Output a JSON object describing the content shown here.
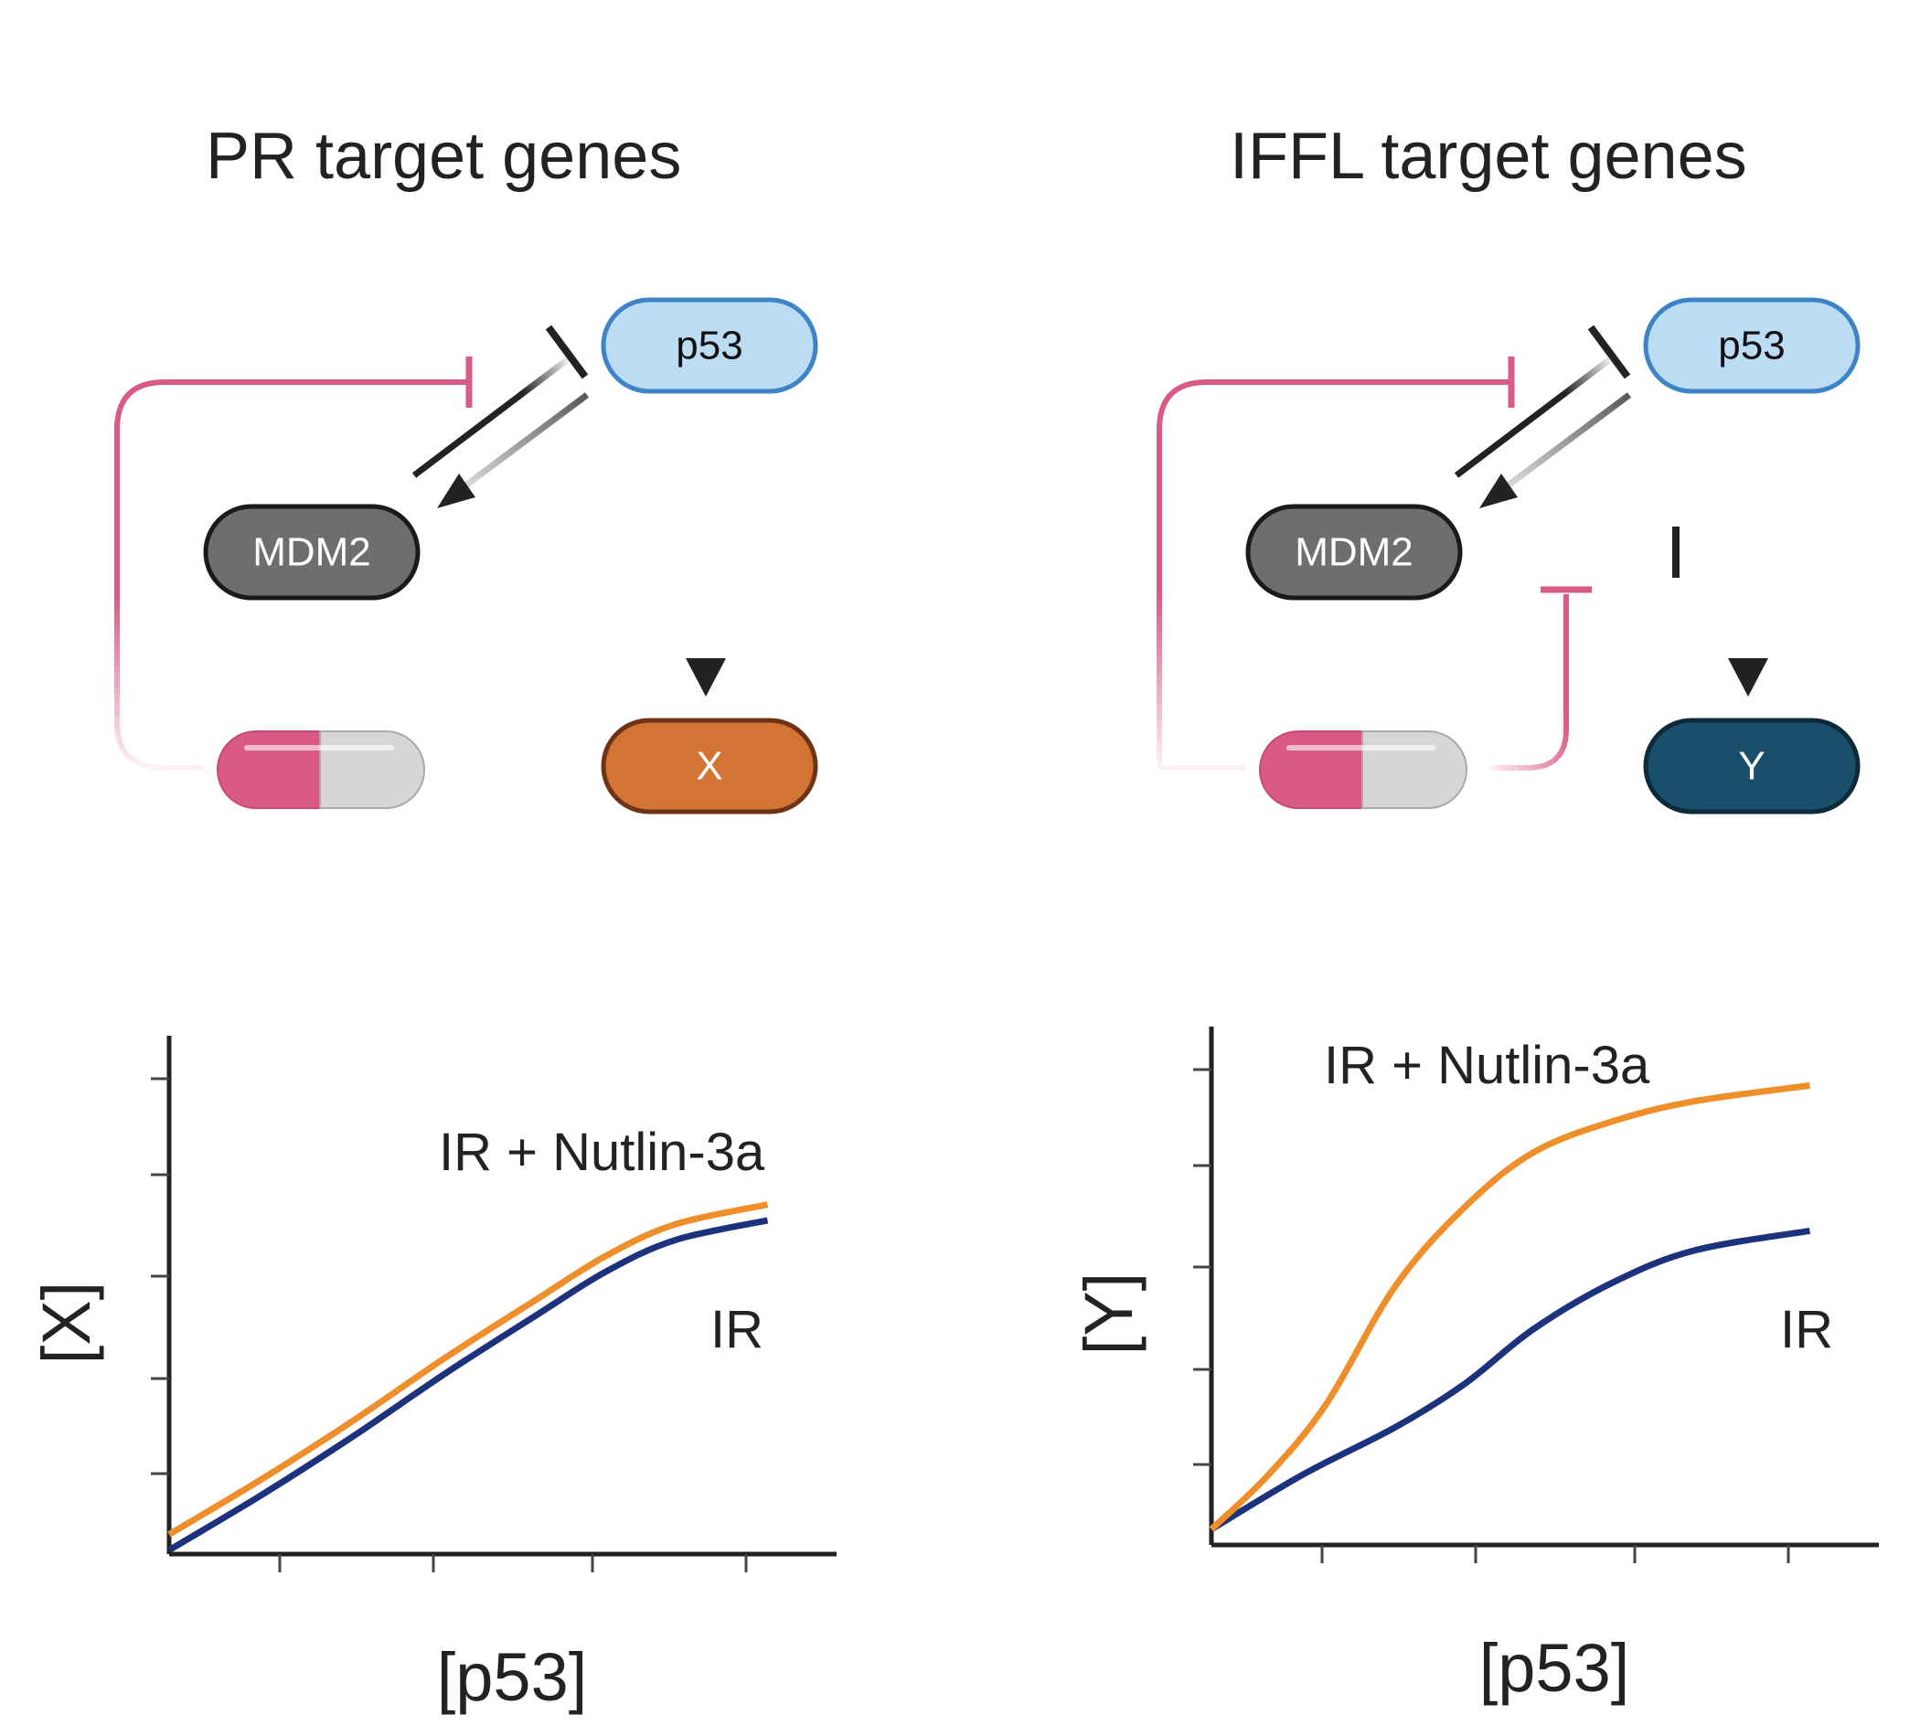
{
  "colors": {
    "p53_fill": "#bcdcf4",
    "p53_stroke": "#3d84c6",
    "mdm2_fill": "#6e6e6e",
    "x_fill": "#d27434",
    "x_stroke": "#6e3315",
    "y_fill": "#194f6a",
    "inhibition_pink": "#d95a83",
    "orange_series": "#ef8f2b",
    "blue_series": "#1c327d"
  },
  "panels": [
    {
      "title": "PR target genes",
      "nodes": {
        "p53": "p53",
        "mdm2": "MDM2",
        "target": "X"
      },
      "icons": {
        "drug": "drug-capsule-icon"
      }
    },
    {
      "title": "IFFL target genes",
      "nodes": {
        "p53": "p53",
        "mdm2": "MDM2",
        "target": "Y"
      },
      "icons": {
        "drug": "drug-capsule-icon"
      }
    }
  ],
  "chart_data": [
    {
      "type": "line",
      "xlabel": "[p53]",
      "ylabel": "[X]",
      "xlim": [
        0,
        5.8
      ],
      "ylim": [
        0,
        6.6
      ],
      "grid": false,
      "series": [
        {
          "name": "IR + Nutlin-3a",
          "color": "#ef8f2b",
          "x": [
            0,
            0.8,
            1.6,
            2.4,
            3.2,
            3.8,
            4.4,
            5.2
          ],
          "y": [
            0.25,
            0.95,
            1.7,
            2.5,
            3.25,
            3.8,
            4.2,
            4.45
          ]
        },
        {
          "name": "IR",
          "color": "#1c327d",
          "x": [
            0,
            0.8,
            1.6,
            2.4,
            3.2,
            3.8,
            4.4,
            5.2
          ],
          "y": [
            0.05,
            0.75,
            1.5,
            2.3,
            3.05,
            3.6,
            4.0,
            4.25
          ]
        }
      ]
    },
    {
      "type": "line",
      "xlabel": "[p53]",
      "ylabel": "[Y]",
      "xlim": [
        0,
        5.8
      ],
      "ylim": [
        0,
        6.6
      ],
      "grid": false,
      "series": [
        {
          "name": "IR + Nutlin-3a",
          "color": "#ef8f2b",
          "x": [
            0,
            0.5,
            1.0,
            1.6,
            2.2,
            2.8,
            3.5,
            4.2,
            5.2
          ],
          "y": [
            0.2,
            0.9,
            1.8,
            3.3,
            4.3,
            5.0,
            5.4,
            5.65,
            5.85
          ]
        },
        {
          "name": "IR",
          "color": "#1c327d",
          "x": [
            0,
            0.8,
            1.6,
            2.2,
            2.8,
            3.5,
            4.2,
            5.2
          ],
          "y": [
            0.2,
            0.9,
            1.5,
            2.05,
            2.75,
            3.35,
            3.75,
            4.0
          ]
        }
      ]
    }
  ]
}
